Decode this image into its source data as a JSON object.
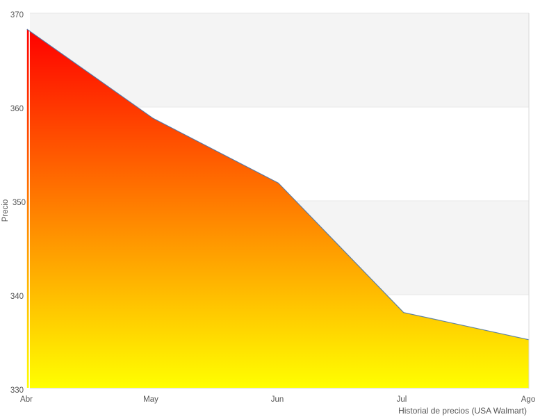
{
  "chart_data": {
    "type": "area",
    "title": "",
    "categories": [
      "Abr",
      "May",
      "Jun",
      "Jul",
      "Ago"
    ],
    "values": [
      368.3,
      358.8,
      351.9,
      338.1,
      335.2
    ],
    "series_name": "Precio",
    "xlabel": "Historial de precios (USA Walmart)",
    "ylabel": "Precio",
    "ylim": [
      330,
      370
    ],
    "yticks": [
      "330",
      "340",
      "350",
      "360",
      "370"
    ],
    "ytick_step": 10,
    "legend": "none",
    "grid": "horizontal-bands-alternating",
    "colors": {
      "fill_top": "#ff0000",
      "fill_bottom": "#ffff00",
      "line": "#4572a7",
      "band": "#f4f4f4",
      "gridline": "#e7e7e7",
      "border": "#d8d8d8",
      "text": "#555555",
      "background": "#ffffff"
    }
  }
}
